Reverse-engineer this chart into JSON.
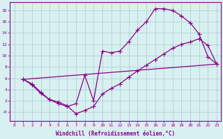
{
  "xlabel": "Windchill (Refroidissement éolien,°C)",
  "xlim": [
    -0.5,
    23.5
  ],
  "ylim": [
    -1.5,
    19.5
  ],
  "yticks": [
    0,
    2,
    4,
    6,
    8,
    10,
    12,
    14,
    16,
    18
  ],
  "ytick_labels": [
    "-0",
    "2",
    "4",
    "6",
    "8",
    "10",
    "12",
    "14",
    "16",
    "18"
  ],
  "xticks": [
    0,
    1,
    2,
    3,
    4,
    5,
    6,
    7,
    8,
    9,
    10,
    11,
    12,
    13,
    14,
    15,
    16,
    17,
    18,
    19,
    20,
    21,
    22,
    23
  ],
  "line_color": "#880088",
  "bg_color": "#d8f0f0",
  "grid_color": "#aacccc",
  "line1_x": [
    1,
    2,
    3,
    4,
    5,
    6,
    7,
    8,
    9,
    10,
    11,
    12,
    13,
    14,
    15,
    16,
    17,
    18,
    19,
    20,
    21,
    22,
    23
  ],
  "line1_y": [
    5.8,
    5.0,
    3.5,
    2.2,
    1.5,
    1.0,
    1.5,
    6.5,
    2.0,
    10.8,
    10.5,
    10.8,
    12.5,
    14.5,
    16.0,
    18.3,
    18.3,
    18.0,
    17.0,
    15.8,
    13.8,
    9.8,
    8.5
  ],
  "line2_x": [
    1,
    2,
    3,
    4,
    5,
    6,
    7,
    8,
    9,
    10,
    11,
    12,
    13,
    14,
    15,
    16,
    17,
    18,
    19,
    20,
    21,
    22,
    23
  ],
  "line2_y": [
    5.8,
    4.8,
    3.3,
    2.2,
    1.8,
    1.1,
    -0.3,
    0.3,
    1.0,
    3.2,
    4.2,
    5.0,
    6.2,
    7.3,
    8.3,
    9.3,
    10.3,
    11.3,
    12.0,
    12.4,
    13.0,
    11.8,
    8.5
  ],
  "line3_x": [
    1,
    23
  ],
  "line3_y": [
    5.8,
    8.5
  ],
  "marker": "+",
  "markersize": 4,
  "linewidth": 0.9
}
